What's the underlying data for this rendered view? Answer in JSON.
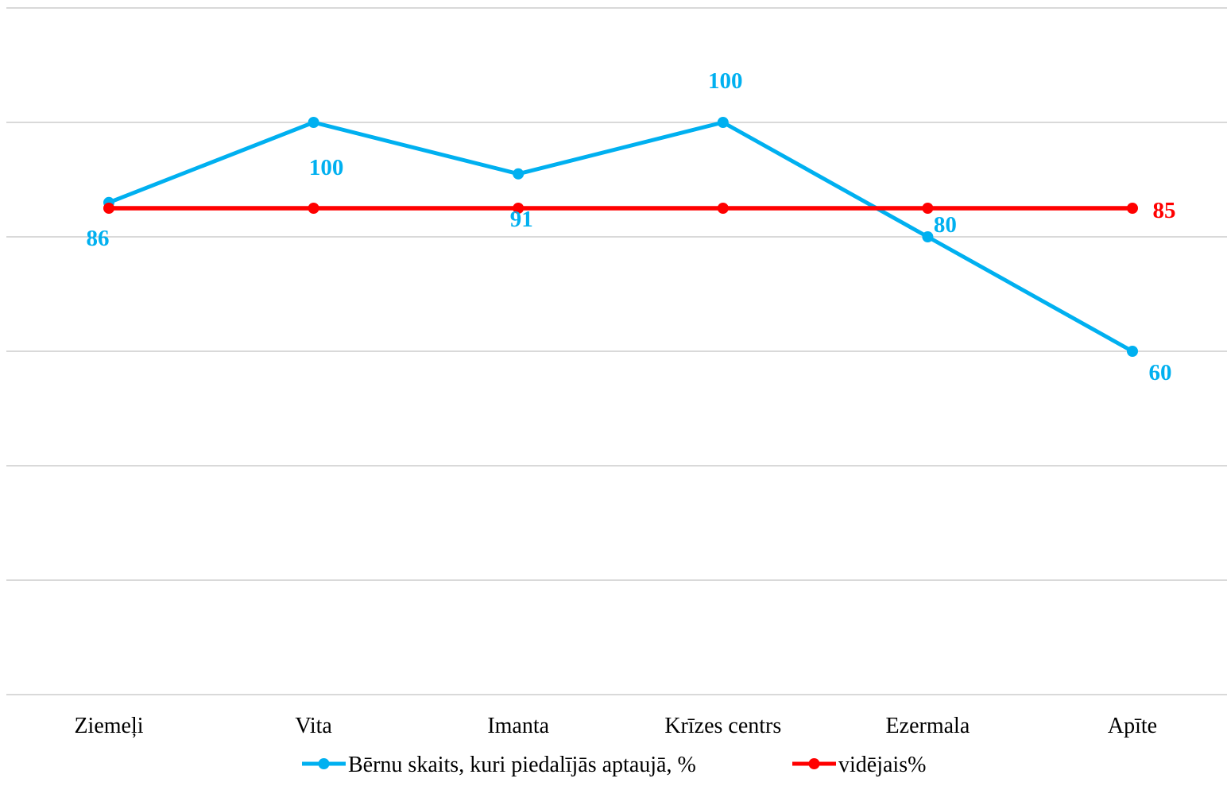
{
  "chart_data": {
    "type": "line",
    "title": "",
    "xlabel": "",
    "ylabel": "",
    "categories": [
      "Ziemeļi",
      "Vita",
      "Imanta",
      "Krīzes centrs",
      "Ezermala",
      "Apīte"
    ],
    "ylim": [
      0,
      120
    ],
    "grid": true,
    "legend_position": "bottom",
    "series": [
      {
        "name": "Bērnu skaits, kuri piedalījās aptaujā,  %",
        "color": "#00b0f0",
        "values": [
          86,
          100,
          91,
          100,
          80,
          60
        ],
        "data_labels": [
          "86",
          "100",
          "91",
          "100",
          "80",
          "60"
        ]
      },
      {
        "name": "vidējais%",
        "color": "#ff0000",
        "values": [
          85,
          85,
          85,
          85,
          85,
          85
        ],
        "data_labels": [
          "",
          "",
          "",
          "",
          "",
          "85"
        ]
      }
    ]
  }
}
